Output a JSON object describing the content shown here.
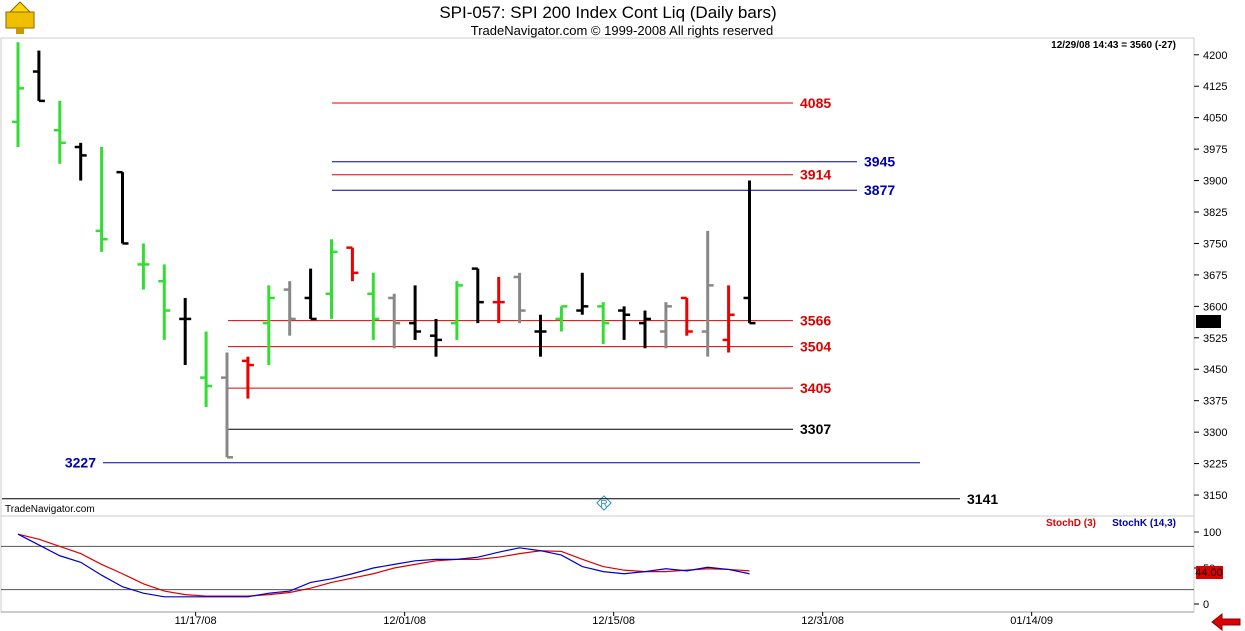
{
  "window": {
    "title": "SPI-057:  SPI 200 Index Cont Liq  (Daily bars)",
    "subtitle": "TradeNavigator.com © 1999-2008 All rights reserved",
    "readout": "12/29/08 14:43 = 3560 (-27)",
    "watermark": "TradeNavigator.com",
    "logo_icon": "trophy-logo-icon",
    "back_icon": "red-left-arrow-icon",
    "center_marker_icon": "r-diamond-icon"
  },
  "colors": {
    "up_bar": "#33dd33",
    "down_bar": "#000000",
    "gray_bar": "#888888",
    "red_bar": "#ee0000",
    "red_level": "#dd0000",
    "blue_level": "#0000aa",
    "black_level": "#000000",
    "stoch_d": "#dd0000",
    "stoch_k": "#0000cc"
  },
  "chart_data": {
    "type": "ohlc",
    "price_axis": {
      "min": 3100,
      "max": 4240,
      "ticks": [
        "4200",
        "4125",
        "4050",
        "3975",
        "3900",
        "3825",
        "3750",
        "3675",
        "3600",
        "3525",
        "3450",
        "3375",
        "3300",
        "3225",
        "3150"
      ],
      "current_price": "3560"
    },
    "x_axis": {
      "tick_labels": [
        "11/17/08",
        "12/01/08",
        "12/15/08",
        "12/31/08",
        "01/14/09"
      ],
      "tick_bar_index": [
        8.5,
        18.5,
        28.5,
        38.5,
        48.5
      ]
    },
    "bars": [
      {
        "o": 4040,
        "h": 4230,
        "l": 3980,
        "c": 4120,
        "color": "green"
      },
      {
        "o": 4160,
        "h": 4210,
        "l": 4090,
        "c": 4090,
        "color": "black"
      },
      {
        "o": 4020,
        "h": 4090,
        "l": 3940,
        "c": 3990,
        "color": "green"
      },
      {
        "o": 3980,
        "h": 3990,
        "l": 3900,
        "c": 3960,
        "color": "black"
      },
      {
        "o": 3780,
        "h": 3980,
        "l": 3730,
        "c": 3760,
        "color": "green"
      },
      {
        "o": 3920,
        "h": 3920,
        "l": 3750,
        "c": 3750,
        "color": "black"
      },
      {
        "o": 3700,
        "h": 3750,
        "l": 3640,
        "c": 3700,
        "color": "green"
      },
      {
        "o": 3660,
        "h": 3700,
        "l": 3520,
        "c": 3590,
        "color": "green"
      },
      {
        "o": 3570,
        "h": 3620,
        "l": 3460,
        "c": 3570,
        "color": "black"
      },
      {
        "o": 3430,
        "h": 3540,
        "l": 3360,
        "c": 3410,
        "color": "green"
      },
      {
        "o": 3430,
        "h": 3490,
        "l": 3240,
        "c": 3240,
        "color": "gray"
      },
      {
        "o": 3470,
        "h": 3480,
        "l": 3380,
        "c": 3460,
        "color": "red"
      },
      {
        "o": 3560,
        "h": 3650,
        "l": 3460,
        "c": 3620,
        "color": "green"
      },
      {
        "o": 3640,
        "h": 3660,
        "l": 3530,
        "c": 3570,
        "color": "gray"
      },
      {
        "o": 3620,
        "h": 3690,
        "l": 3570,
        "c": 3570,
        "color": "black"
      },
      {
        "o": 3630,
        "h": 3760,
        "l": 3570,
        "c": 3730,
        "color": "green"
      },
      {
        "o": 3740,
        "h": 3740,
        "l": 3660,
        "c": 3680,
        "color": "red"
      },
      {
        "o": 3630,
        "h": 3680,
        "l": 3520,
        "c": 3570,
        "color": "green"
      },
      {
        "o": 3620,
        "h": 3630,
        "l": 3500,
        "c": 3560,
        "color": "gray"
      },
      {
        "o": 3560,
        "h": 3650,
        "l": 3520,
        "c": 3540,
        "color": "black"
      },
      {
        "o": 3530,
        "h": 3570,
        "l": 3480,
        "c": 3520,
        "color": "black"
      },
      {
        "o": 3560,
        "h": 3660,
        "l": 3520,
        "c": 3650,
        "color": "green"
      },
      {
        "o": 3690,
        "h": 3690,
        "l": 3560,
        "c": 3610,
        "color": "black"
      },
      {
        "o": 3610,
        "h": 3670,
        "l": 3560,
        "c": 3610,
        "color": "red"
      },
      {
        "o": 3670,
        "h": 3680,
        "l": 3560,
        "c": 3590,
        "color": "gray"
      },
      {
        "o": 3540,
        "h": 3580,
        "l": 3480,
        "c": 3540,
        "color": "black"
      },
      {
        "o": 3570,
        "h": 3600,
        "l": 3540,
        "c": 3600,
        "color": "green"
      },
      {
        "o": 3590,
        "h": 3680,
        "l": 3580,
        "c": 3600,
        "color": "black"
      },
      {
        "o": 3600,
        "h": 3610,
        "l": 3510,
        "c": 3560,
        "color": "green"
      },
      {
        "o": 3590,
        "h": 3600,
        "l": 3520,
        "c": 3580,
        "color": "black"
      },
      {
        "o": 3560,
        "h": 3590,
        "l": 3500,
        "c": 3570,
        "color": "black"
      },
      {
        "o": 3540,
        "h": 3610,
        "l": 3500,
        "c": 3600,
        "color": "gray"
      },
      {
        "o": 3620,
        "h": 3620,
        "l": 3530,
        "c": 3540,
        "color": "red"
      },
      {
        "o": 3540,
        "h": 3780,
        "l": 3480,
        "c": 3650,
        "color": "gray"
      },
      {
        "o": 3520,
        "h": 3650,
        "l": 3490,
        "c": 3580,
        "color": "red"
      },
      {
        "o": 3620,
        "h": 3900,
        "l": 3560,
        "c": 3560,
        "color": "black"
      }
    ],
    "levels": [
      {
        "label": "4085",
        "price": 4085,
        "color": "red",
        "side": "right"
      },
      {
        "label": "3945",
        "price": 3945,
        "color": "blue",
        "side": "right"
      },
      {
        "label": "3914",
        "price": 3914,
        "color": "red",
        "side": "right"
      },
      {
        "label": "3877",
        "price": 3877,
        "color": "blue",
        "side": "right"
      },
      {
        "label": "3566",
        "price": 3566,
        "color": "red",
        "side": "right"
      },
      {
        "label": "3504",
        "price": 3504,
        "color": "red",
        "side": "right"
      },
      {
        "label": "3405",
        "price": 3405,
        "color": "red",
        "side": "right"
      },
      {
        "label": "3307",
        "price": 3307,
        "color": "black",
        "side": "right"
      },
      {
        "label": "3227",
        "price": 3227,
        "color": "blue",
        "side": "left"
      },
      {
        "label": "3141",
        "price": 3141,
        "color": "black",
        "side": "right"
      }
    ],
    "stochastic": {
      "legend_d": "StochD (3)",
      "legend_k": "StochK (14,3)",
      "ticks": [
        "100",
        "50",
        "0"
      ],
      "current_value": "44.00",
      "k": [
        97,
        82,
        67,
        58,
        40,
        24,
        15,
        10,
        10,
        10,
        10,
        10,
        15,
        18,
        30,
        35,
        42,
        50,
        55,
        60,
        62,
        62,
        65,
        72,
        78,
        74,
        68,
        52,
        45,
        42,
        45,
        49,
        46,
        51,
        48,
        42
      ],
      "d": [
        97,
        90,
        80,
        70,
        55,
        42,
        28,
        18,
        13,
        11,
        11,
        11,
        13,
        16,
        22,
        30,
        36,
        42,
        50,
        55,
        60,
        62,
        62,
        65,
        70,
        74,
        73,
        62,
        52,
        47,
        45,
        45,
        47,
        49,
        48,
        46
      ]
    }
  }
}
